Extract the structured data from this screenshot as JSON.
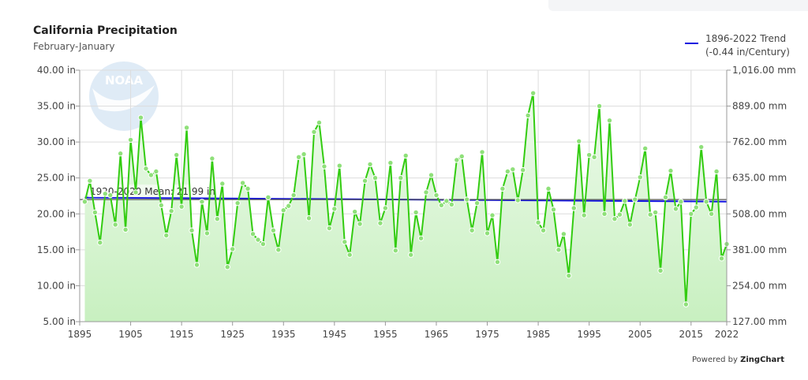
{
  "header": {
    "title": "California Precipitation",
    "subtitle": "February-January"
  },
  "legend": {
    "line1": "1896-2022 Trend",
    "line2": "(-0.44 in/Century)",
    "color": "#1010e0"
  },
  "watermark": "NOAA",
  "footer": {
    "powered_prefix": "Powered by",
    "powered_brand": "ZingChart"
  },
  "chart_data": {
    "type": "area",
    "title": "California Precipitation",
    "subtitle": "February-January",
    "x_start": 1896,
    "x_end": 2022,
    "xlim": [
      1895,
      2022
    ],
    "x_ticks": [
      "1895",
      "1905",
      "1915",
      "1925",
      "1935",
      "1945",
      "1955",
      "1965",
      "1975",
      "1985",
      "1995",
      "2005",
      "2015",
      "2022"
    ],
    "ylim": [
      5,
      40
    ],
    "y_ticks": [
      "5.00 in",
      "10.00 in",
      "15.00 in",
      "20.00 in",
      "25.00 in",
      "30.00 in",
      "35.00 in",
      "40.00 in"
    ],
    "y2_ticks": [
      "127.00 mm",
      "254.00 mm",
      "381.00 mm",
      "508.00 mm",
      "635.00 mm",
      "762.00 mm",
      "889.00 mm",
      "1,016.00 mm"
    ],
    "grid": true,
    "line_color": "#33cc11",
    "fill_color": "#c8f0c0",
    "values": [
      21.7,
      24.6,
      20.2,
      16.0,
      22.8,
      22.6,
      18.5,
      28.4,
      17.8,
      30.3,
      23.0,
      33.4,
      26.3,
      25.4,
      25.9,
      21.2,
      17.0,
      20.4,
      28.2,
      21.0,
      32.0,
      17.7,
      12.9,
      21.7,
      17.3,
      27.7,
      19.3,
      24.2,
      12.6,
      15.1,
      21.5,
      24.3,
      23.5,
      17.2,
      16.4,
      15.8,
      22.3,
      17.7,
      15.0,
      20.5,
      21.1,
      22.6,
      27.9,
      28.3,
      19.4,
      31.4,
      32.7,
      26.6,
      18.0,
      20.7,
      26.7,
      16.1,
      14.3,
      20.3,
      18.6,
      24.6,
      26.9,
      25.0,
      18.7,
      20.8,
      27.1,
      14.9,
      25.0,
      28.1,
      14.3,
      20.2,
      16.6,
      23.0,
      25.4,
      22.6,
      21.2,
      21.8,
      21.3,
      27.5,
      28.0,
      22.0,
      17.7,
      21.5,
      28.6,
      17.3,
      19.8,
      13.3,
      23.5,
      25.9,
      26.2,
      21.9,
      26.1,
      33.7,
      36.8,
      18.8,
      17.7,
      23.5,
      20.6,
      15.0,
      17.2,
      11.4,
      20.8,
      30.1,
      19.8,
      28.2,
      27.9,
      35.0,
      20.0,
      33.0,
      19.3,
      19.9,
      21.8,
      18.5,
      22.0,
      25.1,
      29.1,
      19.9,
      20.2,
      12.1,
      22.3,
      26.0,
      20.7,
      21.7,
      7.4,
      20.0,
      20.9,
      29.3,
      21.7,
      20.0,
      25.9,
      13.8,
      15.8
    ],
    "mean": {
      "label": "1920-2020 Mean: 21.99 in",
      "value": 21.99,
      "color": "#555555"
    },
    "trend": {
      "name": "1896-2022 Trend",
      "start": [
        1896,
        22.27
      ],
      "end": [
        2022,
        21.71
      ],
      "color": "#1010e0"
    }
  }
}
